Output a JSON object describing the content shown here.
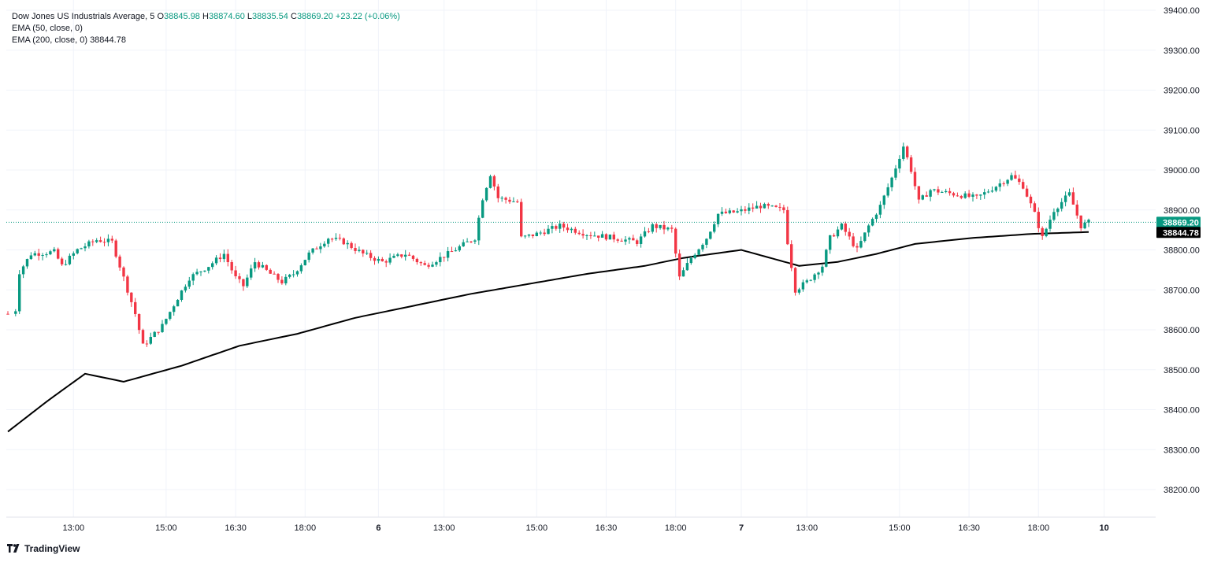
{
  "legend": {
    "symbol": "Dow Jones US Industrials Average",
    "interval": "5",
    "open_label": "O",
    "open": "38845.98",
    "high_label": "H",
    "high": "38874.60",
    "low_label": "L",
    "low": "38835.54",
    "close_label": "C",
    "close": "38869.20",
    "change": "+23.22 (+0.06%)",
    "ema50_label": "EMA (50, close, 0)",
    "ema200_label": "EMA (200, close, 0)",
    "ema200_value": "38844.78"
  },
  "brand": {
    "name": "TradingView"
  },
  "colors": {
    "up": "#089981",
    "down": "#f23645",
    "ema": "#000000",
    "grid": "#f0f3fa",
    "price_badge": "#089981",
    "ema_badge": "#000000"
  },
  "chart_data": {
    "type": "candlestick",
    "y_ticks": [
      38200,
      38300,
      38400,
      38500,
      38600,
      38700,
      38800,
      38900,
      39000,
      39100,
      39200,
      39300,
      39400
    ],
    "y_tick_labels": [
      "38200.00",
      "38300.00",
      "38400.00",
      "38500.00",
      "38600.00",
      "38700.00",
      "38800.00",
      "38900.00",
      "39000.00",
      "39100.00",
      "39200.00",
      "39300.00",
      "39400.00"
    ],
    "ylim": [
      38130,
      39410
    ],
    "x_ticks": [
      {
        "bar": 17,
        "label": "13:00"
      },
      {
        "bar": 41,
        "label": "15:00"
      },
      {
        "bar": 59,
        "label": "16:30"
      },
      {
        "bar": 77,
        "label": "18:00"
      },
      {
        "bar": 96,
        "label": "6"
      },
      {
        "bar": 113,
        "label": "13:00"
      },
      {
        "bar": 137,
        "label": "15:00"
      },
      {
        "bar": 155,
        "label": "16:30"
      },
      {
        "bar": 173,
        "label": "18:00"
      },
      {
        "bar": 190,
        "label": "7"
      },
      {
        "bar": 207,
        "label": "13:00"
      },
      {
        "bar": 231,
        "label": "15:00"
      },
      {
        "bar": 249,
        "label": "16:30"
      },
      {
        "bar": 267,
        "label": "18:00"
      },
      {
        "bar": 284,
        "label": "10"
      }
    ],
    "bar_count_total": 320,
    "price_path": [
      [
        0,
        38640
      ],
      [
        2,
        38650
      ],
      [
        3,
        38745
      ],
      [
        6,
        38790
      ],
      [
        12,
        38795
      ],
      [
        14,
        38760
      ],
      [
        18,
        38800
      ],
      [
        23,
        38825
      ],
      [
        27,
        38820
      ],
      [
        29,
        38760
      ],
      [
        31,
        38700
      ],
      [
        33,
        38640
      ],
      [
        35,
        38560
      ],
      [
        37,
        38580
      ],
      [
        40,
        38610
      ],
      [
        44,
        38680
      ],
      [
        47,
        38730
      ],
      [
        52,
        38760
      ],
      [
        56,
        38790
      ],
      [
        59,
        38730
      ],
      [
        61,
        38710
      ],
      [
        64,
        38770
      ],
      [
        68,
        38740
      ],
      [
        71,
        38720
      ],
      [
        74,
        38740
      ],
      [
        78,
        38790
      ],
      [
        83,
        38830
      ],
      [
        87,
        38820
      ],
      [
        92,
        38790
      ],
      [
        97,
        38770
      ],
      [
        103,
        38790
      ],
      [
        108,
        38760
      ],
      [
        114,
        38790
      ],
      [
        121,
        38830
      ],
      [
        123,
        38930
      ],
      [
        125,
        38990
      ],
      [
        127,
        38930
      ],
      [
        132,
        38920
      ],
      [
        133,
        38830
      ],
      [
        137,
        38840
      ],
      [
        143,
        38860
      ],
      [
        150,
        38840
      ],
      [
        157,
        38830
      ],
      [
        163,
        38820
      ],
      [
        167,
        38860
      ],
      [
        172,
        38850
      ],
      [
        174,
        38730
      ],
      [
        177,
        38780
      ],
      [
        181,
        38830
      ],
      [
        184,
        38890
      ],
      [
        189,
        38895
      ],
      [
        195,
        38910
      ],
      [
        201,
        38900
      ],
      [
        202,
        38820
      ],
      [
        204,
        38700
      ],
      [
        207,
        38720
      ],
      [
        211,
        38760
      ],
      [
        213,
        38830
      ],
      [
        216,
        38860
      ],
      [
        220,
        38800
      ],
      [
        223,
        38860
      ],
      [
        226,
        38910
      ],
      [
        229,
        38980
      ],
      [
        232,
        39060
      ],
      [
        234,
        39000
      ],
      [
        236,
        38920
      ],
      [
        239,
        38950
      ],
      [
        245,
        38940
      ],
      [
        251,
        38930
      ],
      [
        256,
        38960
      ],
      [
        260,
        38985
      ],
      [
        263,
        38960
      ],
      [
        266,
        38890
      ],
      [
        268,
        38830
      ],
      [
        271,
        38900
      ],
      [
        275,
        38940
      ],
      [
        278,
        38860
      ],
      [
        280,
        38869
      ]
    ],
    "ema200_path": [
      [
        0,
        38345
      ],
      [
        10,
        38420
      ],
      [
        20,
        38490
      ],
      [
        30,
        38470
      ],
      [
        45,
        38510
      ],
      [
        60,
        38560
      ],
      [
        75,
        38590
      ],
      [
        90,
        38630
      ],
      [
        105,
        38660
      ],
      [
        120,
        38690
      ],
      [
        135,
        38715
      ],
      [
        150,
        38740
      ],
      [
        165,
        38760
      ],
      [
        175,
        38780
      ],
      [
        190,
        38800
      ],
      [
        205,
        38760
      ],
      [
        215,
        38770
      ],
      [
        225,
        38790
      ],
      [
        235,
        38815
      ],
      [
        250,
        38830
      ],
      [
        265,
        38840
      ],
      [
        280,
        38844.78
      ]
    ],
    "last_price": 38869.2,
    "last_price_label": "38869.20",
    "ema200_last": 38844.78,
    "ema200_last_label": "38844.78"
  }
}
